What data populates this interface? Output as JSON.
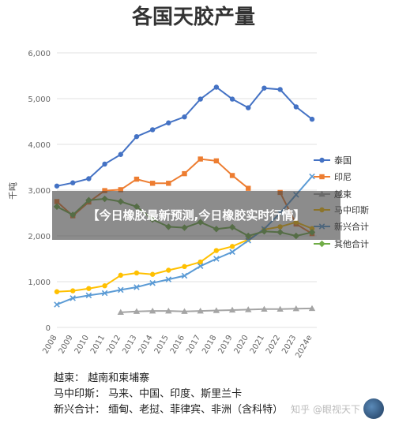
{
  "chart_data": {
    "type": "line",
    "title": "各国天胶产量",
    "ylabel": "千吨",
    "ylim": [
      0,
      6000
    ],
    "yticks": [
      0,
      1000,
      2000,
      3000,
      4000,
      5000,
      6000
    ],
    "ytick_labels": [
      "0",
      "1,000",
      "2,000",
      "3,000",
      "4,000",
      "5,000",
      "6,000"
    ],
    "categories": [
      "2008",
      "2009",
      "2010",
      "2011",
      "2012",
      "2013",
      "2014",
      "2015",
      "2016",
      "2017",
      "2018",
      "2019",
      "2020",
      "2021",
      "2022",
      "2023",
      "2024e"
    ],
    "grid": true,
    "legend_position": "right",
    "series": [
      {
        "name": "泰国",
        "color": "#4472c4",
        "marker": "circle",
        "values": [
          3090,
          3160,
          3250,
          3570,
          3780,
          4170,
          4320,
          4470,
          4600,
          4990,
          5250,
          4990,
          4800,
          5230,
          5200,
          4820,
          4550
        ]
      },
      {
        "name": "印尼",
        "color": "#ed7d31",
        "marker": "square",
        "values": [
          2750,
          2440,
          2740,
          2990,
          3010,
          3240,
          3150,
          3150,
          3360,
          3680,
          3640,
          3320,
          3040,
          null,
          2950,
          2260,
          2050
        ]
      },
      {
        "name": "越束",
        "color": "#a5a5a5",
        "marker": "triangle",
        "values": [
          null,
          null,
          null,
          null,
          330,
          350,
          360,
          360,
          350,
          360,
          370,
          380,
          390,
          400,
          400,
          410,
          415
        ]
      },
      {
        "name": "马中印斯",
        "color": "#ffc000",
        "marker": "circle",
        "values": [
          780,
          800,
          850,
          910,
          1140,
          1190,
          1160,
          1250,
          1330,
          1430,
          1680,
          1770,
          1920,
          2140,
          2200,
          2300,
          2160
        ]
      },
      {
        "name": "新兴合计",
        "color": "#5b9bd5",
        "marker": "x",
        "values": [
          500,
          640,
          700,
          750,
          820,
          880,
          970,
          1050,
          1130,
          1340,
          1500,
          1650,
          1900,
          2150,
          2500,
          2900,
          3300
        ]
      },
      {
        "name": "其他合计",
        "color": "#70ad47",
        "marker": "diamond",
        "values": [
          2640,
          2460,
          2780,
          2810,
          2750,
          2640,
          2360,
          2200,
          2180,
          2300,
          2150,
          2190,
          2000,
          2100,
          2080,
          2000,
          2080
        ]
      }
    ]
  },
  "overlay_text": "【今日橡胶最新预测,今日橡胶实时行情】",
  "notes": [
    "越柬：   越南和柬埔寨",
    "马中印斯：  马来、中国、印度、斯里兰卡",
    "新兴合计：  缅甸、老挝、菲律宾、非洲（含科特）"
  ],
  "watermark": "知乎 @眼视天下"
}
